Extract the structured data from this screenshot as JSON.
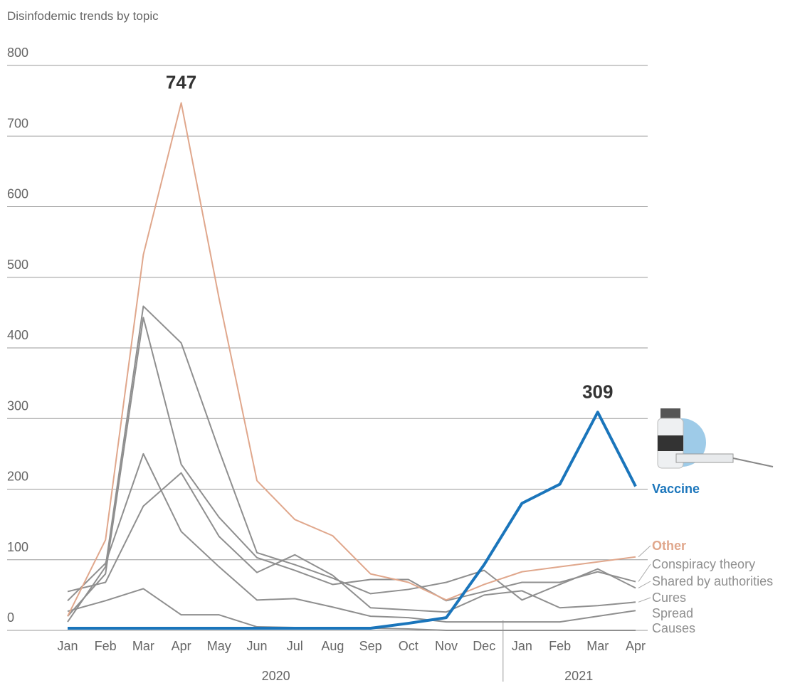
{
  "chart_data": {
    "type": "line",
    "title": "Disinfodemic trends by topic",
    "categories": [
      "Jan",
      "Feb",
      "Mar",
      "Apr",
      "May",
      "Jun",
      "Jul",
      "Aug",
      "Sep",
      "Oct",
      "Nov",
      "Dec",
      "Jan",
      "Feb",
      "Mar",
      "Apr"
    ],
    "x_groups": [
      {
        "label": "2020",
        "count": 12
      },
      {
        "label": "2021",
        "count": 4
      }
    ],
    "ylim": [
      0,
      800
    ],
    "yticks": [
      0,
      100,
      200,
      300,
      400,
      500,
      600,
      700,
      800
    ],
    "grid": true,
    "series": [
      {
        "name": "Vaccine",
        "color": "#1a75bb",
        "width": 4,
        "values": [
          3,
          3,
          3,
          3,
          3,
          3,
          3,
          3,
          3,
          10,
          18,
          93,
          180,
          207,
          309,
          204
        ],
        "value_labels": [
          null,
          null,
          null,
          null,
          null,
          null,
          null,
          null,
          null,
          null,
          null,
          null,
          null,
          null,
          "309",
          null
        ]
      },
      {
        "name": "Other",
        "color": "#e0a78c",
        "width": 2,
        "values": [
          20,
          128,
          532,
          747,
          470,
          212,
          157,
          134,
          80,
          68,
          43,
          65,
          83,
          90,
          97,
          104
        ],
        "value_labels": [
          null,
          null,
          null,
          "747",
          null,
          null,
          null,
          null,
          null,
          null,
          null,
          null,
          null,
          null,
          null,
          null
        ]
      },
      {
        "name": "Conspiracy theory",
        "color": "#8f8f8f",
        "width": 2,
        "values": [
          20,
          80,
          443,
          235,
          160,
          103,
          85,
          65,
          72,
          72,
          42,
          55,
          68,
          68,
          83,
          69
        ]
      },
      {
        "name": "Shared by authorities",
        "color": "#8f8f8f",
        "width": 2,
        "values": [
          12,
          90,
          459,
          407,
          255,
          110,
          93,
          74,
          52,
          58,
          68,
          85,
          43,
          65,
          87,
          60
        ]
      },
      {
        "name": "Cures",
        "color": "#8f8f8f",
        "width": 2,
        "values": [
          55,
          68,
          176,
          223,
          133,
          82,
          107,
          78,
          32,
          29,
          26,
          50,
          56,
          32,
          35,
          40
        ]
      },
      {
        "name": "Spread",
        "color": "#8f8f8f",
        "width": 2,
        "values": [
          42,
          95,
          250,
          140,
          90,
          43,
          45,
          33,
          20,
          18,
          12,
          12,
          12,
          12,
          20,
          28
        ]
      },
      {
        "name": "Causes",
        "color": "#8f8f8f",
        "width": 2,
        "values": [
          27,
          42,
          59,
          22,
          22,
          5,
          4,
          4,
          3,
          2,
          0,
          0,
          0,
          0,
          0,
          0
        ]
      }
    ]
  }
}
